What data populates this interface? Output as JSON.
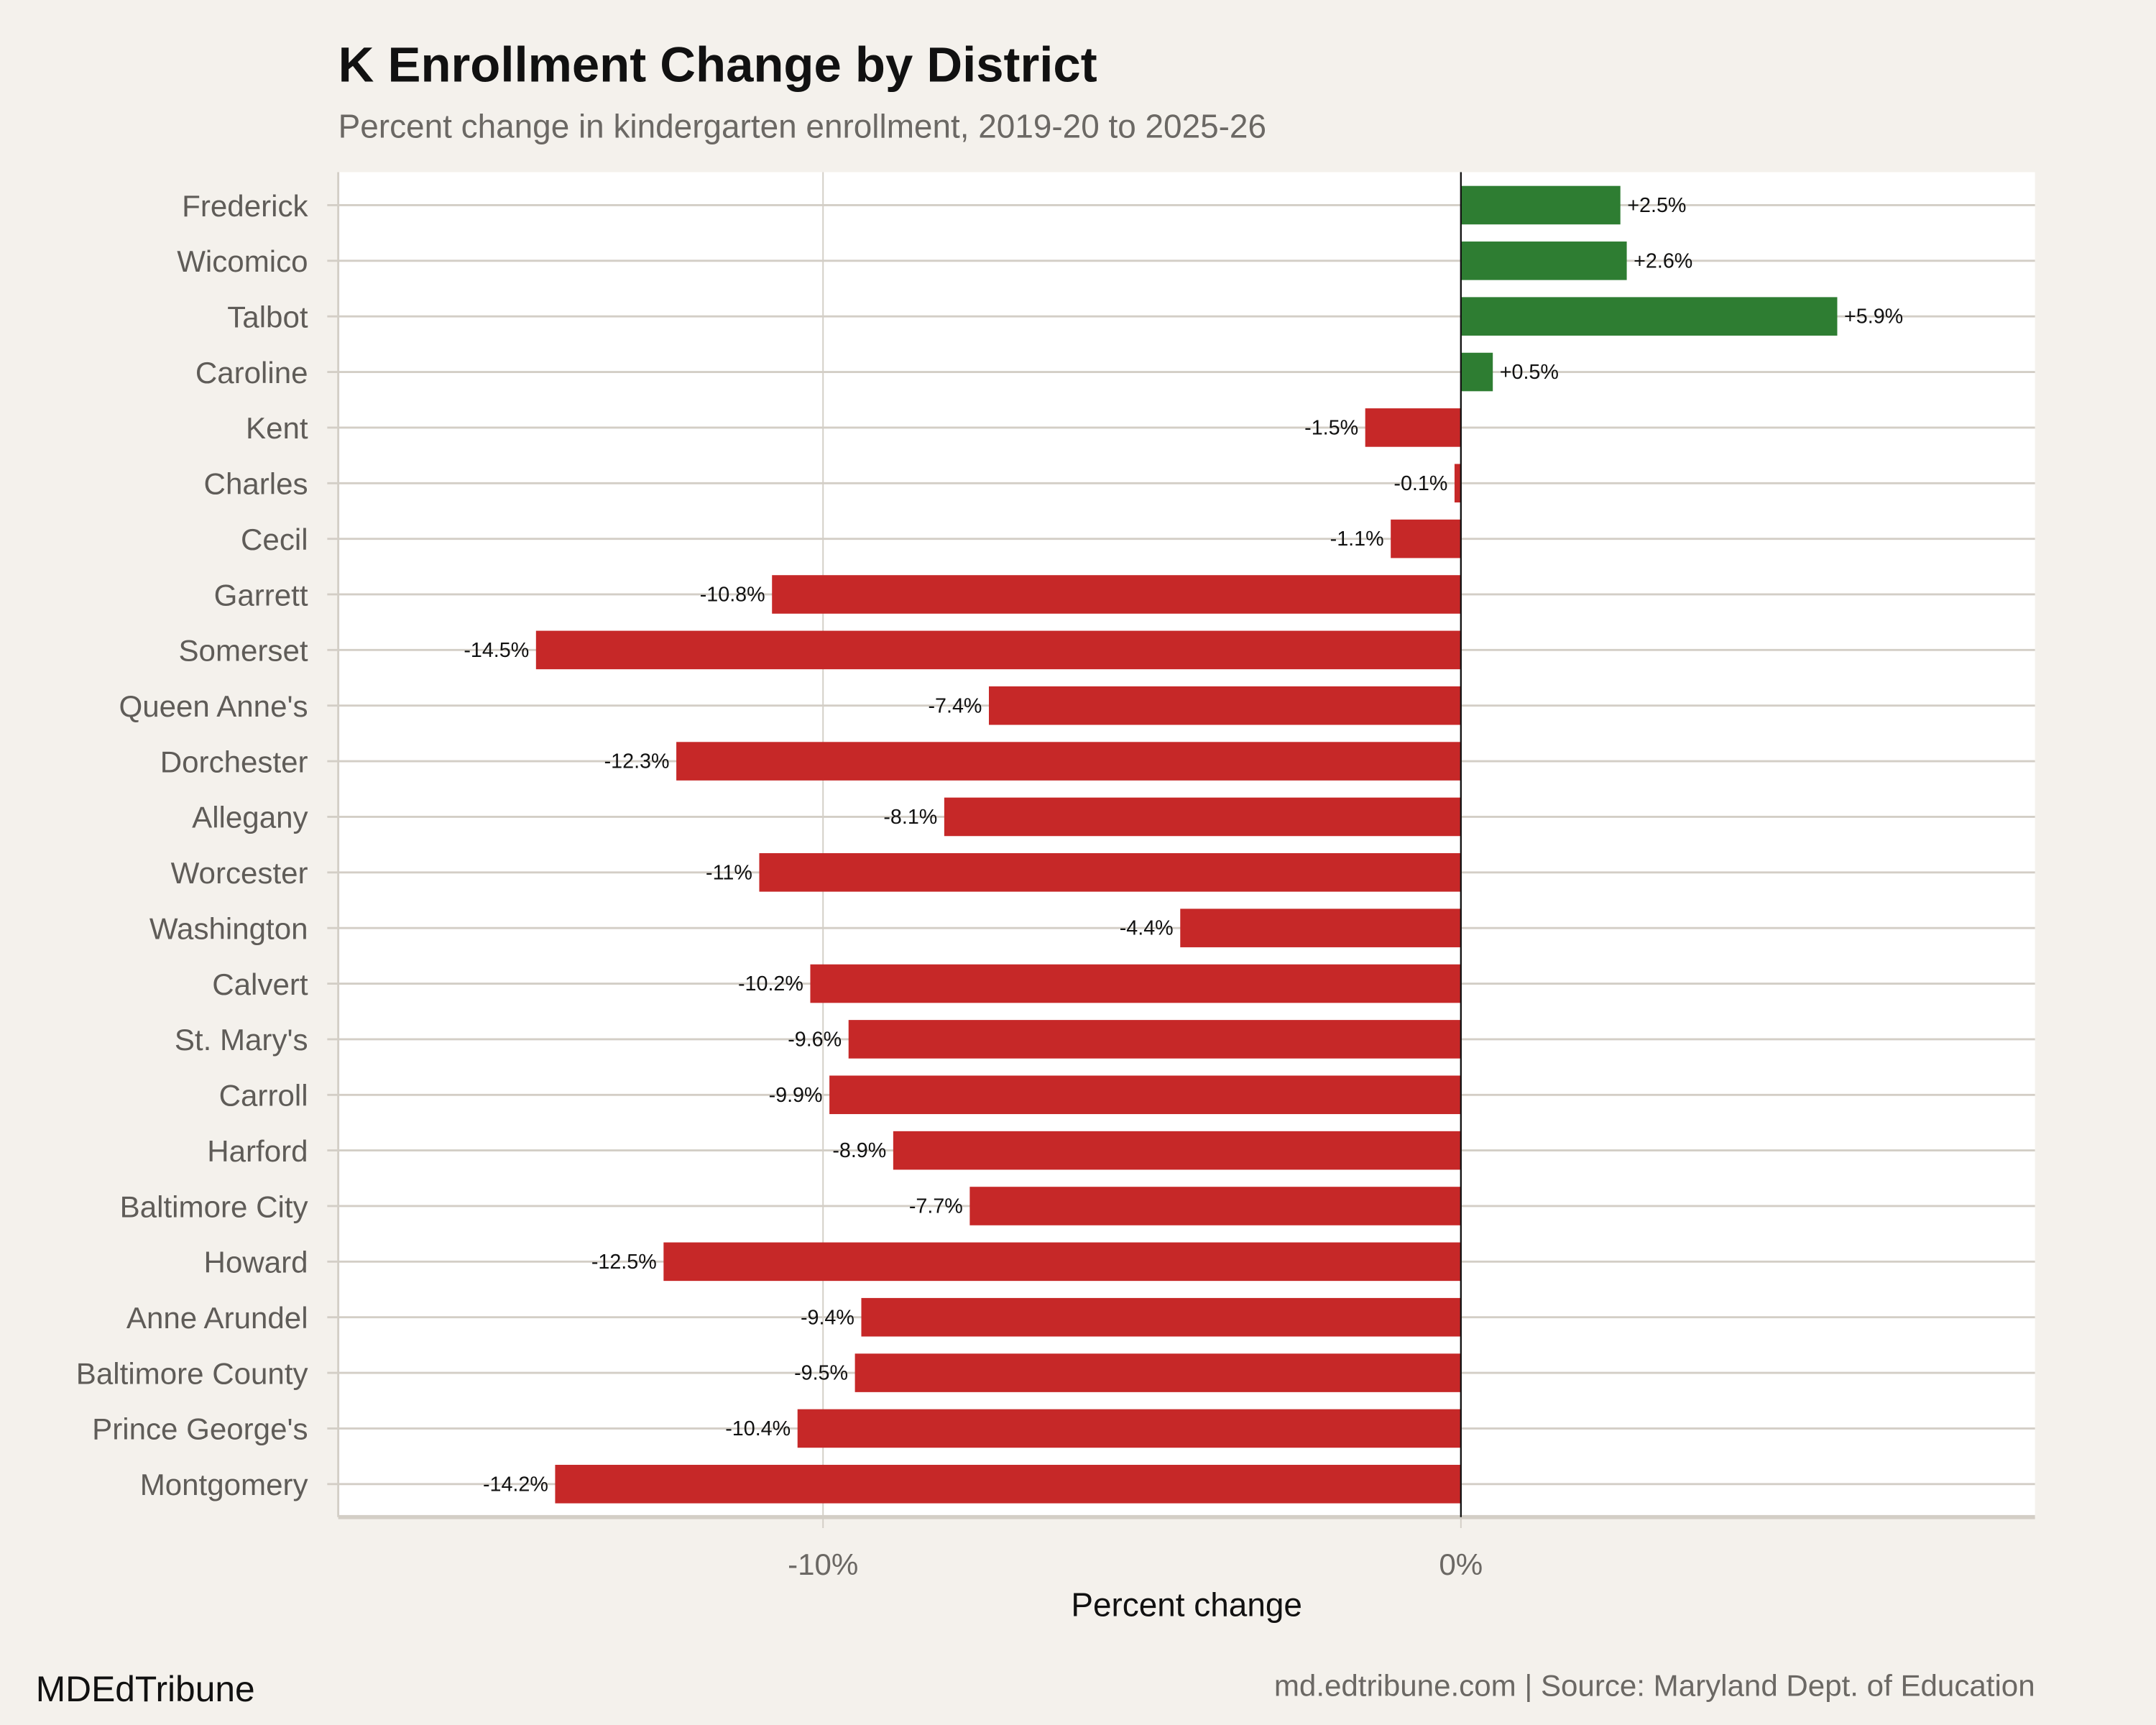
{
  "header": {
    "title": "K Enrollment Change by District",
    "subtitle": "Percent change in kindergarten enrollment, 2019-20 to 2025-26"
  },
  "footer": {
    "brand": "MDEdTribune",
    "source": "md.edtribune.com | Source: Maryland Dept. of Education"
  },
  "colors": {
    "background": "#f4f1ec",
    "panel": "#ffffff",
    "grid": "#d3cec6",
    "positive": "#2e7d32",
    "negative": "#c62828"
  },
  "chart_data": {
    "type": "bar",
    "orientation": "horizontal",
    "title": "K Enrollment Change by District",
    "subtitle": "Percent change in kindergarten enrollment, 2019-20 to 2025-26",
    "xlabel": "Percent change",
    "ylabel": "",
    "xlim": [
      -17.6,
      9.0
    ],
    "xticks": [
      -10,
      0
    ],
    "xtick_labels": [
      "-10%",
      "0%"
    ],
    "grid": true,
    "categories": [
      "Frederick",
      "Wicomico",
      "Talbot",
      "Caroline",
      "Kent",
      "Charles",
      "Cecil",
      "Garrett",
      "Somerset",
      "Queen Anne's",
      "Dorchester",
      "Allegany",
      "Worcester",
      "Washington",
      "Calvert",
      "St. Mary's",
      "Carroll",
      "Harford",
      "Baltimore City",
      "Howard",
      "Anne Arundel",
      "Baltimore County",
      "Prince George's",
      "Montgomery"
    ],
    "values": [
      2.5,
      2.6,
      5.9,
      0.5,
      -1.5,
      -0.1,
      -1.1,
      -10.8,
      -14.5,
      -7.4,
      -12.3,
      -8.1,
      -11,
      -4.4,
      -10.2,
      -9.6,
      -9.9,
      -8.9,
      -7.7,
      -12.5,
      -9.4,
      -9.5,
      -10.4,
      -14.2
    ],
    "labels": [
      "+2.5%",
      "+2.6%",
      "+5.9%",
      "+0.5%",
      "-1.5%",
      "-0.1%",
      "-1.1%",
      "-10.8%",
      "-14.5%",
      "-7.4%",
      "-12.3%",
      "-8.1%",
      "-11%",
      "-4.4%",
      "-10.2%",
      "-9.6%",
      "-9.9%",
      "-8.9%",
      "-7.7%",
      "-12.5%",
      "-9.4%",
      "-9.5%",
      "-10.4%",
      "-14.2%"
    ]
  }
}
